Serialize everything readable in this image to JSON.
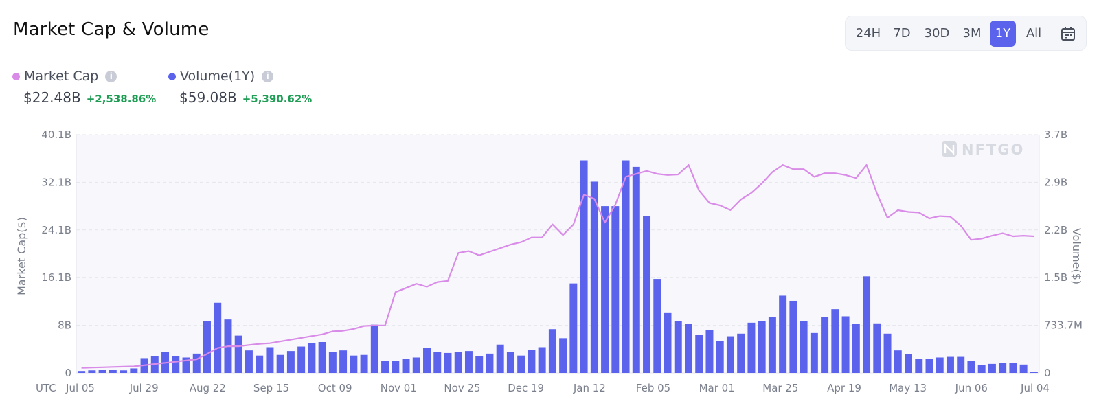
{
  "header": {
    "title": "Market Cap & Volume"
  },
  "range": {
    "options": [
      "24H",
      "7D",
      "30D",
      "3M",
      "1Y",
      "All"
    ],
    "selected": "1Y",
    "calendar_icon": "calendar-icon"
  },
  "legend": [
    {
      "label": "Market Cap",
      "value": "$22.48B",
      "change": "+2,538.86%",
      "color": "#d98be8"
    },
    {
      "label": "Volume(1Y)",
      "value": "$59.08B",
      "change": "+5,390.62%",
      "color": "#5b63ec"
    }
  ],
  "watermark": "NFTGO",
  "chart_data": {
    "type": "bar",
    "x_axis_prefix": "UTC",
    "x_tick_labels": [
      "Jul 05",
      "Jul 29",
      "Aug 22",
      "Sep 15",
      "Oct 09",
      "Nov 01",
      "Nov 25",
      "Dec 19",
      "Jan 12",
      "Feb 05",
      "Mar 01",
      "Mar 25",
      "Apr 19",
      "May 13",
      "Jun 06",
      "Jul 04"
    ],
    "ylabel_left": "Market Cap($)",
    "ylabel_right": "Volume($)",
    "y_left_ticks": [
      "0",
      "8B",
      "16.1B",
      "24.1B",
      "32.1B",
      "40.1B"
    ],
    "y_right_ticks": [
      "0",
      "733.7M",
      "1.5B",
      "2.2B",
      "2.9B",
      "3.7B"
    ],
    "ylim_left": [
      0,
      40.1
    ],
    "ylim_right": [
      0,
      3.7
    ],
    "grid": true,
    "series": [
      {
        "name": "Volume(1Y)",
        "type": "bar",
        "axis": "right",
        "unit": "B",
        "values": [
          0.03,
          0.04,
          0.05,
          0.05,
          0.04,
          0.07,
          0.23,
          0.26,
          0.33,
          0.26,
          0.24,
          0.3,
          0.81,
          1.09,
          0.83,
          0.58,
          0.35,
          0.27,
          0.4,
          0.28,
          0.34,
          0.41,
          0.46,
          0.48,
          0.32,
          0.35,
          0.27,
          0.28,
          0.75,
          0.19,
          0.19,
          0.22,
          0.24,
          0.39,
          0.33,
          0.31,
          0.32,
          0.34,
          0.26,
          0.3,
          0.44,
          0.33,
          0.27,
          0.36,
          0.4,
          0.68,
          0.54,
          1.39,
          3.3,
          2.97,
          2.59,
          2.59,
          3.3,
          3.2,
          2.44,
          1.46,
          0.94,
          0.81,
          0.76,
          0.59,
          0.67,
          0.5,
          0.57,
          0.61,
          0.78,
          0.8,
          0.87,
          1.2,
          1.12,
          0.81,
          0.62,
          0.87,
          0.99,
          0.88,
          0.76,
          1.5,
          0.77,
          0.61,
          0.35,
          0.29,
          0.22,
          0.22,
          0.24,
          0.25,
          0.25,
          0.19,
          0.12,
          0.14,
          0.15,
          0.16,
          0.13,
          0.02
        ]
      },
      {
        "name": "Market Cap",
        "type": "line",
        "axis": "left",
        "unit": "B",
        "values": [
          0.85,
          0.9,
          0.95,
          1.0,
          1.05,
          1.1,
          1.3,
          1.5,
          1.7,
          1.9,
          2.1,
          2.3,
          3.2,
          4.2,
          4.5,
          4.5,
          4.7,
          4.9,
          5.0,
          5.3,
          5.6,
          5.9,
          6.2,
          6.5,
          7.0,
          7.1,
          7.4,
          7.9,
          8.0,
          8.0,
          13.6,
          14.3,
          15.0,
          14.5,
          15.3,
          15.5,
          20.2,
          20.5,
          19.8,
          20.4,
          21.0,
          21.6,
          22.0,
          22.8,
          22.8,
          25.0,
          23.2,
          25.0,
          30.0,
          29.3,
          25.3,
          28.3,
          33.0,
          33.5,
          34.0,
          33.5,
          33.3,
          33.4,
          35.0,
          30.7,
          28.6,
          28.2,
          27.4,
          29.2,
          30.3,
          31.9,
          33.8,
          35.0,
          34.3,
          34.3,
          33.0,
          33.6,
          33.6,
          33.3,
          32.8,
          35.0,
          30.2,
          26.1,
          27.4,
          27.1,
          27.0,
          26.0,
          26.4,
          26.3,
          24.8,
          22.4,
          22.6,
          23.1,
          23.5,
          23.0,
          23.1,
          23.0
        ]
      }
    ]
  }
}
